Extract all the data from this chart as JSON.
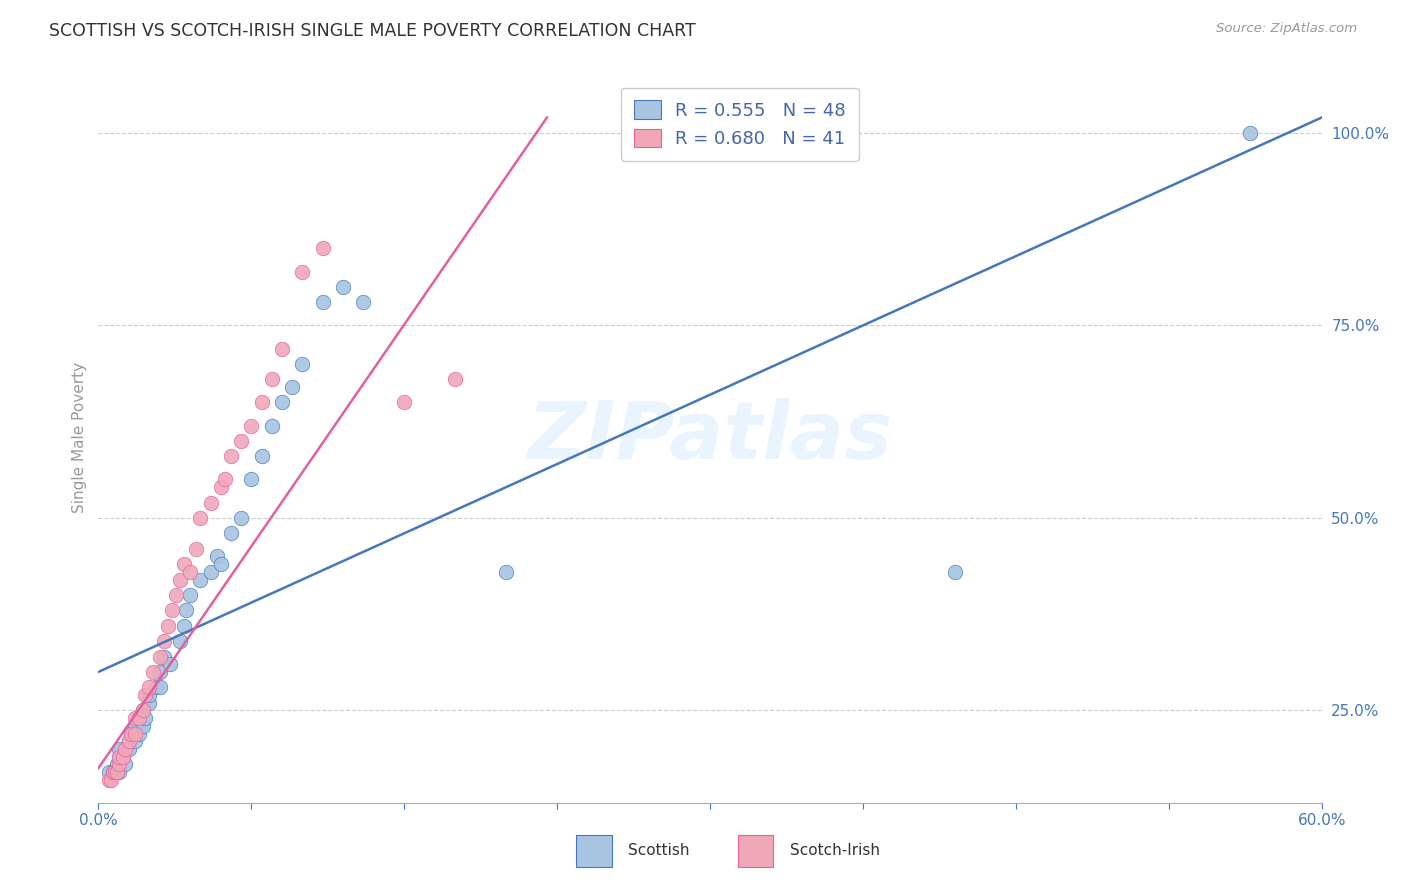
{
  "title": "SCOTTISH VS SCOTCH-IRISH SINGLE MALE POVERTY CORRELATION CHART",
  "source": "Source: ZipAtlas.com",
  "ylabel": "Single Male Poverty",
  "xlim": [
    0.0,
    0.6
  ],
  "ylim": [
    0.13,
    1.08
  ],
  "yticks_right": [
    0.25,
    0.5,
    0.75,
    1.0
  ],
  "ytick_right_labels": [
    "25.0%",
    "50.0%",
    "75.0%",
    "100.0%"
  ],
  "scottish_color": "#a8c4e0",
  "scotch_irish_color": "#f0a8b8",
  "scottish_R": 0.555,
  "scottish_N": 48,
  "scotch_irish_R": 0.68,
  "scotch_irish_N": 41,
  "line_color_scottish": "#4477bb",
  "line_color_scotch_irish": "#e060a0",
  "legend_text_color": "#4466aa",
  "background_color": "#ffffff",
  "blue_line_x0": 0.0,
  "blue_line_y0": 0.3,
  "blue_line_x1": 0.6,
  "blue_line_y1": 1.02,
  "pink_line_x0": 0.0,
  "pink_line_y0": 0.175,
  "pink_line_x1": 0.22,
  "pink_line_y1": 1.02,
  "scottish_points_x": [
    0.005,
    0.007,
    0.008,
    0.009,
    0.01,
    0.01,
    0.01,
    0.012,
    0.013,
    0.015,
    0.015,
    0.016,
    0.018,
    0.018,
    0.02,
    0.02,
    0.022,
    0.022,
    0.023,
    0.025,
    0.025,
    0.028,
    0.03,
    0.03,
    0.032,
    0.035,
    0.04,
    0.042,
    0.043,
    0.045,
    0.05,
    0.055,
    0.058,
    0.06,
    0.065,
    0.07,
    0.075,
    0.08,
    0.085,
    0.09,
    0.095,
    0.1,
    0.11,
    0.12,
    0.13,
    0.2,
    0.42,
    0.565
  ],
  "scottish_points_y": [
    0.17,
    0.17,
    0.17,
    0.18,
    0.17,
    0.19,
    0.2,
    0.19,
    0.18,
    0.2,
    0.21,
    0.22,
    0.21,
    0.23,
    0.22,
    0.24,
    0.23,
    0.25,
    0.24,
    0.26,
    0.27,
    0.28,
    0.28,
    0.3,
    0.32,
    0.31,
    0.34,
    0.36,
    0.38,
    0.4,
    0.42,
    0.43,
    0.45,
    0.44,
    0.48,
    0.5,
    0.55,
    0.58,
    0.62,
    0.65,
    0.67,
    0.7,
    0.78,
    0.8,
    0.78,
    0.43,
    0.43,
    1.0
  ],
  "scotch_irish_points_x": [
    0.005,
    0.006,
    0.007,
    0.008,
    0.009,
    0.01,
    0.01,
    0.012,
    0.013,
    0.015,
    0.016,
    0.018,
    0.018,
    0.02,
    0.022,
    0.023,
    0.025,
    0.027,
    0.03,
    0.032,
    0.034,
    0.036,
    0.038,
    0.04,
    0.042,
    0.045,
    0.048,
    0.05,
    0.055,
    0.06,
    0.062,
    0.065,
    0.07,
    0.075,
    0.08,
    0.085,
    0.09,
    0.1,
    0.11,
    0.15,
    0.175
  ],
  "scotch_irish_points_y": [
    0.16,
    0.16,
    0.17,
    0.17,
    0.17,
    0.18,
    0.19,
    0.19,
    0.2,
    0.21,
    0.22,
    0.22,
    0.24,
    0.24,
    0.25,
    0.27,
    0.28,
    0.3,
    0.32,
    0.34,
    0.36,
    0.38,
    0.4,
    0.42,
    0.44,
    0.43,
    0.46,
    0.5,
    0.52,
    0.54,
    0.55,
    0.58,
    0.6,
    0.62,
    0.65,
    0.68,
    0.72,
    0.82,
    0.85,
    0.65,
    0.68
  ]
}
